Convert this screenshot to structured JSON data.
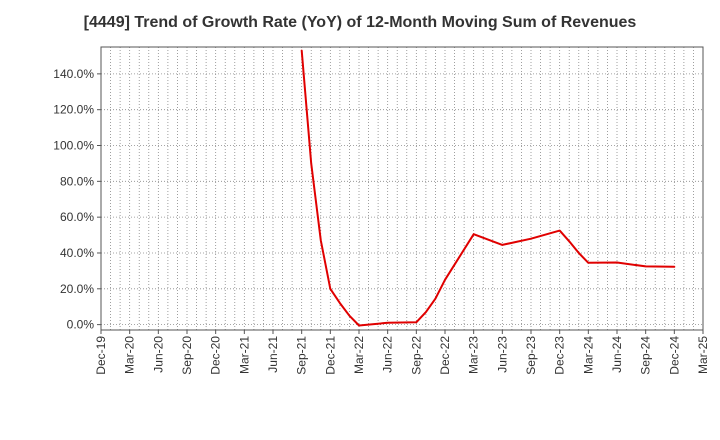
{
  "chart_data": {
    "type": "line",
    "title": "[4449]  Trend of Growth Rate (YoY) of 12-Month Moving Sum of Revenues",
    "xlabel": "",
    "ylabel": "",
    "x_ticks": [
      "Dec-19",
      "Mar-20",
      "Jun-20",
      "Sep-20",
      "Dec-20",
      "Mar-21",
      "Jun-21",
      "Sep-21",
      "Dec-21",
      "Mar-22",
      "Jun-22",
      "Sep-22",
      "Dec-22",
      "Mar-23",
      "Jun-23",
      "Sep-23",
      "Dec-23",
      "Mar-24",
      "Jun-24",
      "Sep-24",
      "Dec-24",
      "Mar-25"
    ],
    "y_ticks": [
      "0.0%",
      "20.0%",
      "40.0%",
      "60.0%",
      "80.0%",
      "100.0%",
      "120.0%",
      "140.0%"
    ],
    "ylim": [
      -3,
      155
    ],
    "grid": true,
    "series": [
      {
        "color": "#e00000",
        "points": [
          {
            "x": "Sep-21",
            "y": 153
          },
          {
            "x": "Oct-21",
            "y": 90
          },
          {
            "x": "Nov-21",
            "y": 47
          },
          {
            "x": "Dec-21",
            "y": 20
          },
          {
            "x": "Jan-22",
            "y": 12
          },
          {
            "x": "Feb-22",
            "y": 5
          },
          {
            "x": "Mar-22",
            "y": -0.5
          },
          {
            "x": "Jun-22",
            "y": 1
          },
          {
            "x": "Sep-22",
            "y": 1.3
          },
          {
            "x": "Oct-22",
            "y": 7
          },
          {
            "x": "Nov-22",
            "y": 14.5
          },
          {
            "x": "Dec-22",
            "y": 25
          },
          {
            "x": "Mar-23",
            "y": 50.5
          },
          {
            "x": "Jun-23",
            "y": 44.5
          },
          {
            "x": "Sep-23",
            "y": 48
          },
          {
            "x": "Dec-23",
            "y": 52.5
          },
          {
            "x": "Jan-24",
            "y": 46.5
          },
          {
            "x": "Feb-24",
            "y": 40
          },
          {
            "x": "Mar-24",
            "y": 34.5
          },
          {
            "x": "Jun-24",
            "y": 34.7
          },
          {
            "x": "Sep-24",
            "y": 32.5
          },
          {
            "x": "Dec-24",
            "y": 32.3
          }
        ]
      }
    ]
  }
}
